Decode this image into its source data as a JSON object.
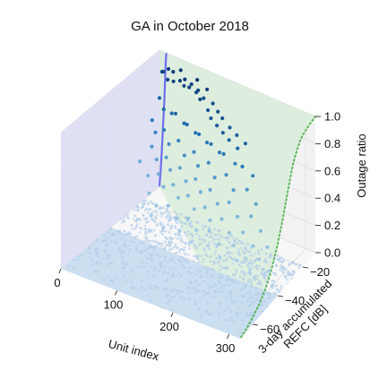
{
  "chart_data": {
    "type": "scatter",
    "projection": "3d",
    "title": "GA in October 2018",
    "xlabel": "Unit index",
    "ylabel": [
      "3-day accumulated",
      "REFC [dB]"
    ],
    "zlabel": "Outage ratio",
    "xlim": [
      0,
      320
    ],
    "ylim": [
      -70,
      -10
    ],
    "zlim": [
      0,
      1
    ],
    "xticks": [
      "0",
      "100",
      "200",
      "300"
    ],
    "yticks": [
      "-20",
      "-40",
      "-60"
    ],
    "zticks": [
      "0.0",
      "0.2",
      "0.4",
      "0.6",
      "0.8",
      "1.0"
    ],
    "colormap": "Blues",
    "colors": {
      "cdf_line": "#6e6ef0",
      "cdf_fill": "#dcdcf8",
      "refc_line": "#5db55d",
      "refc_fill": "#d8ecd8",
      "pane_left": "#ebebeb",
      "pane_right": "#f2f2f2",
      "pane_floor": "#f7f7f7"
    },
    "series": [
      {
        "kind": "scatter3d",
        "color_by": "outage_ratio",
        "points": [
          [
            12,
            -12,
            0.88
          ],
          [
            18,
            -13,
            0.9
          ],
          [
            25,
            -12,
            0.92
          ],
          [
            30,
            -14,
            0.87
          ],
          [
            38,
            -13,
            0.93
          ],
          [
            45,
            -15,
            0.89
          ],
          [
            50,
            -12,
            0.95
          ],
          [
            55,
            -14,
            0.9
          ],
          [
            60,
            -13,
            0.86
          ],
          [
            68,
            -15,
            0.94
          ],
          [
            72,
            -12,
            0.88
          ],
          [
            80,
            -16,
            0.91
          ],
          [
            85,
            -13,
            0.85
          ],
          [
            90,
            -14,
            0.96
          ],
          [
            95,
            -15,
            0.9
          ],
          [
            100,
            -13,
            0.83
          ],
          [
            105,
            -17,
            0.87
          ],
          [
            110,
            -14,
            0.92
          ],
          [
            118,
            -16,
            0.8
          ],
          [
            125,
            -15,
            0.85
          ],
          [
            130,
            -18,
            0.78
          ],
          [
            138,
            -16,
            0.82
          ],
          [
            145,
            -19,
            0.76
          ],
          [
            150,
            -17,
            0.8
          ],
          [
            160,
            -20,
            0.74
          ],
          [
            168,
            -18,
            0.77
          ],
          [
            175,
            -21,
            0.72
          ],
          [
            185,
            -19,
            0.75
          ],
          [
            195,
            -22,
            0.7
          ],
          [
            205,
            -20,
            0.73
          ],
          [
            20,
            -16,
            0.74
          ],
          [
            35,
            -18,
            0.7
          ],
          [
            48,
            -17,
            0.68
          ],
          [
            62,
            -19,
            0.72
          ],
          [
            76,
            -18,
            0.66
          ],
          [
            88,
            -20,
            0.69
          ],
          [
            102,
            -19,
            0.64
          ],
          [
            115,
            -21,
            0.67
          ],
          [
            128,
            -20,
            0.62
          ],
          [
            142,
            -22,
            0.65
          ],
          [
            156,
            -21,
            0.6
          ],
          [
            170,
            -23,
            0.63
          ],
          [
            190,
            -22,
            0.58
          ],
          [
            210,
            -24,
            0.61
          ],
          [
            228,
            -23,
            0.56
          ],
          [
            15,
            -19,
            0.6
          ],
          [
            28,
            -21,
            0.55
          ],
          [
            42,
            -20,
            0.58
          ],
          [
            58,
            -22,
            0.52
          ],
          [
            74,
            -21,
            0.56
          ],
          [
            92,
            -23,
            0.5
          ],
          [
            108,
            -22,
            0.54
          ],
          [
            122,
            -24,
            0.48
          ],
          [
            140,
            -23,
            0.52
          ],
          [
            158,
            -25,
            0.46
          ],
          [
            178,
            -24,
            0.5
          ],
          [
            198,
            -26,
            0.44
          ],
          [
            222,
            -25,
            0.47
          ],
          [
            245,
            -27,
            0.42
          ],
          [
            24,
            -22,
            0.45
          ],
          [
            40,
            -24,
            0.4
          ],
          [
            56,
            -23,
            0.43
          ],
          [
            70,
            -25,
            0.38
          ],
          [
            86,
            -24,
            0.41
          ],
          [
            104,
            -26,
            0.36
          ],
          [
            120,
            -25,
            0.39
          ],
          [
            136,
            -27,
            0.34
          ],
          [
            152,
            -26,
            0.37
          ],
          [
            172,
            -28,
            0.32
          ],
          [
            192,
            -27,
            0.35
          ],
          [
            214,
            -29,
            0.3
          ],
          [
            238,
            -28,
            0.33
          ],
          [
            262,
            -30,
            0.28
          ],
          [
            10,
            -25,
            0.35
          ],
          [
            32,
            -27,
            0.3
          ],
          [
            50,
            -26,
            0.33
          ],
          [
            66,
            -28,
            0.28
          ],
          [
            82,
            -27,
            0.31
          ],
          [
            98,
            -29,
            0.26
          ],
          [
            114,
            -28,
            0.29
          ],
          [
            132,
            -30,
            0.24
          ],
          [
            150,
            -29,
            0.27
          ],
          [
            166,
            -31,
            0.22
          ],
          [
            186,
            -30,
            0.25
          ],
          [
            206,
            -32,
            0.2
          ],
          [
            230,
            -31,
            0.23
          ],
          [
            255,
            -33,
            0.19
          ],
          [
            280,
            -32,
            0.21
          ],
          [
            44,
            -30,
            0.22
          ],
          [
            64,
            -32,
            0.18
          ],
          [
            84,
            -31,
            0.2
          ],
          [
            106,
            -33,
            0.16
          ],
          [
            126,
            -32,
            0.18
          ],
          [
            148,
            -34,
            0.15
          ],
          [
            170,
            -33,
            0.17
          ],
          [
            194,
            -35,
            0.13
          ],
          [
            220,
            -34,
            0.15
          ],
          [
            248,
            -36,
            0.12
          ],
          [
            272,
            -35,
            0.14
          ],
          [
            296,
            -37,
            0.11
          ],
          [
            60,
            -34,
            0.12
          ],
          [
            90,
            -36,
            0.1
          ],
          [
            118,
            -35,
            0.11
          ],
          [
            146,
            -37,
            0.09
          ],
          [
            176,
            -36,
            0.1
          ],
          [
            204,
            -38,
            0.08
          ],
          [
            234,
            -37,
            0.09
          ],
          [
            264,
            -39,
            0.07
          ],
          [
            290,
            -38,
            0.08
          ],
          [
            310,
            -40,
            0.06
          ]
        ]
      },
      {
        "kind": "scatter3d_floor",
        "description_of_band": "dense zero-outage points",
        "x_range": [
          0,
          320
        ],
        "y_range": [
          -70,
          -40
        ],
        "z": 0
      },
      {
        "kind": "line3d",
        "name": "",
        "plane": "y=-10",
        "color_key": "cdf_line",
        "x": [
          0,
          2,
          4,
          6,
          8,
          10,
          11,
          12,
          13,
          14
        ],
        "z": [
          0,
          0.1,
          0.22,
          0.36,
          0.5,
          0.64,
          0.75,
          0.85,
          0.94,
          1.0
        ]
      },
      {
        "kind": "line3d",
        "name": "",
        "plane": "x=320",
        "style": "dotted",
        "color_key": "refc_line",
        "y": [
          -10,
          -15,
          -20,
          -22,
          -24,
          -26,
          -28,
          -30,
          -32,
          -34,
          -36,
          -38,
          -40,
          -43,
          -46,
          -50,
          -55,
          -60,
          -65,
          -70
        ],
        "z": [
          1.0,
          0.99,
          0.97,
          0.95,
          0.92,
          0.88,
          0.83,
          0.76,
          0.68,
          0.6,
          0.52,
          0.45,
          0.38,
          0.3,
          0.22,
          0.15,
          0.09,
          0.05,
          0.02,
          0.0
        ]
      }
    ]
  }
}
